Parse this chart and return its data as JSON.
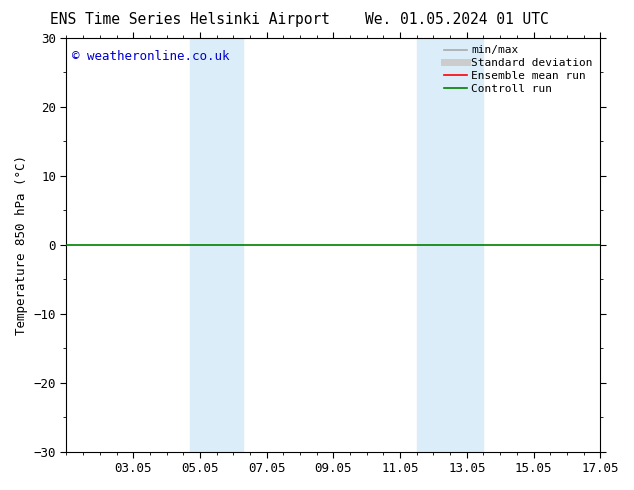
{
  "title_left": "ENS Time Series Helsinki Airport",
  "title_right": "We. 01.05.2024 01 UTC",
  "ylabel": "Temperature 850 hPa (°C)",
  "ylim": [
    -30,
    30
  ],
  "yticks": [
    -30,
    -20,
    -10,
    0,
    10,
    20,
    30
  ],
  "xlim_start": 0,
  "xlim_end": 16,
  "xtick_labels": [
    "03.05",
    "05.05",
    "07.05",
    "09.05",
    "11.05",
    "13.05",
    "15.05",
    "17.05"
  ],
  "xtick_positions": [
    2,
    4,
    6,
    8,
    10,
    12,
    14,
    16
  ],
  "shaded_bands": [
    {
      "xmin": 3.7,
      "xmax": 5.3
    },
    {
      "xmin": 10.5,
      "xmax": 12.5
    }
  ],
  "shaded_color": "#daedf8",
  "hline_y": 0,
  "green_line_color": "#008000",
  "copyright_text": "© weatheronline.co.uk",
  "copyright_color": "#0000cc",
  "legend_items": [
    {
      "label": "min/max",
      "color": "#aaaaaa",
      "lw": 1.2
    },
    {
      "label": "Standard deviation",
      "color": "#cccccc",
      "lw": 5
    },
    {
      "label": "Ensemble mean run",
      "color": "#ff0000",
      "lw": 1.2
    },
    {
      "label": "Controll run",
      "color": "#008000",
      "lw": 1.2
    }
  ],
  "bg_color": "#ffffff",
  "border_color": "#000000",
  "title_fontsize": 10.5,
  "label_fontsize": 9,
  "tick_fontsize": 9,
  "legend_fontsize": 8,
  "copyright_fontsize": 9
}
